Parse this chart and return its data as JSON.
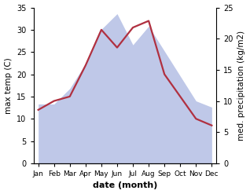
{
  "months": [
    "Jan",
    "Feb",
    "Mar",
    "Apr",
    "May",
    "Jun",
    "Jul",
    "Aug",
    "Sep",
    "Oct",
    "Nov",
    "Dec"
  ],
  "temp": [
    12,
    14,
    15,
    22,
    30,
    26,
    30.5,
    32,
    20,
    15,
    10,
    8.5
  ],
  "precip": [
    9.5,
    9.5,
    12,
    16,
    21.5,
    24,
    19,
    22,
    18,
    14,
    10,
    9
  ],
  "temp_color": "#b03040",
  "precip_fill_color": "#bfc8e8",
  "left_ylim": [
    0,
    35
  ],
  "right_ylim": [
    0,
    25
  ],
  "left_yticks": [
    0,
    5,
    10,
    15,
    20,
    25,
    30,
    35
  ],
  "right_yticks": [
    0,
    5,
    10,
    15,
    20,
    25
  ],
  "xlabel": "date (month)",
  "ylabel_left": "max temp (C)",
  "ylabel_right": "med. precipitation (kg/m2)",
  "background_color": "#ffffff",
  "temp_linewidth": 1.6
}
